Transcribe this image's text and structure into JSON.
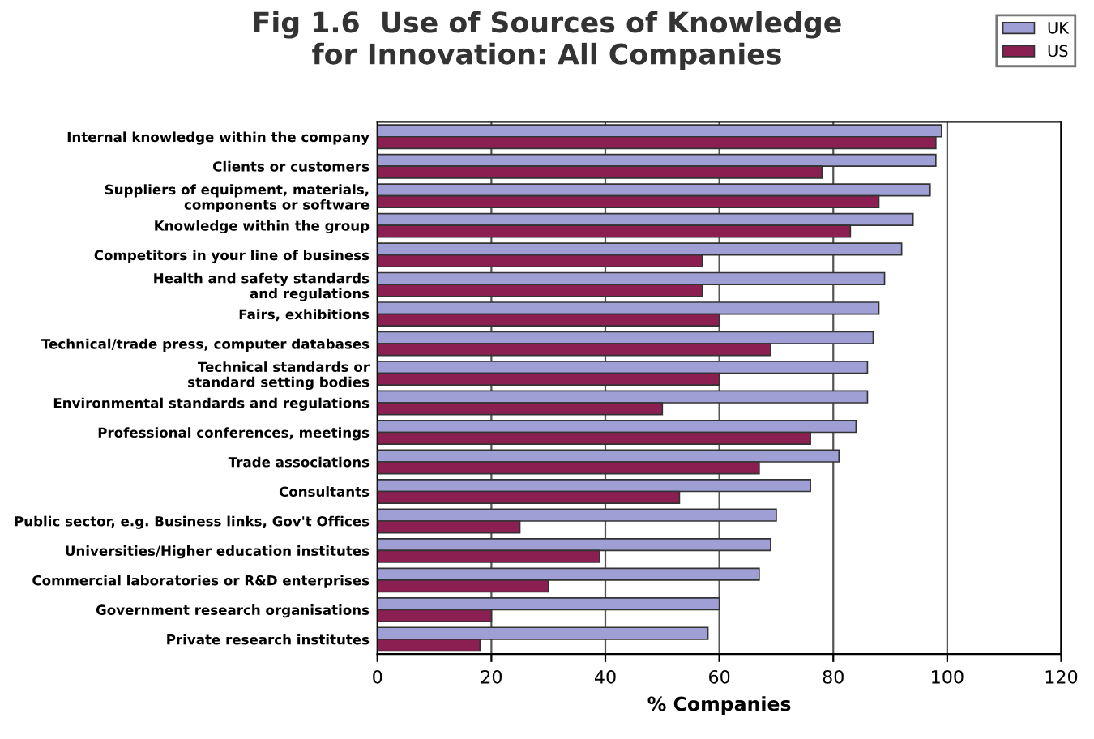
{
  "chart_data": {
    "type": "bar",
    "orientation": "horizontal",
    "title": "Fig 1.6  Use of Sources of Knowledge\nfor Innovation: All Companies",
    "xlabel": "% Companies",
    "categories": [
      "Internal knowledge within the company",
      "Clients or customers",
      "Suppliers of equipment, materials,\ncomponents or software",
      "Knowledge within the group",
      "Competitors in your line of business",
      "Health and safety standards\nand regulations",
      "Fairs, exhibitions",
      "Technical/trade press, computer databases",
      "Technical standards or\nstandard setting bodies",
      "Environmental standards and regulations",
      "Professional conferences, meetings",
      "Trade associations",
      "Consultants",
      "Public sector, e.g. Business links, Gov't Offices",
      "Universities/Higher education institutes",
      "Commercial laboratories or R&D enterprises",
      "Government research organisations",
      "Private research institutes"
    ],
    "series": [
      {
        "name": "UK",
        "color": "#9f9fd6",
        "values": [
          99,
          98,
          97,
          94,
          92,
          89,
          88,
          87,
          86,
          86,
          84,
          81,
          76,
          70,
          69,
          67,
          60,
          58
        ]
      },
      {
        "name": "US",
        "color": "#8b1f52",
        "values": [
          98,
          78,
          88,
          83,
          57,
          57,
          60,
          69,
          60,
          50,
          76,
          67,
          53,
          25,
          39,
          30,
          20,
          18
        ]
      }
    ],
    "xlim": [
      0,
      120
    ],
    "xticks": [
      0,
      20,
      40,
      60,
      80,
      100,
      120
    ],
    "grid": "x",
    "legend": "top right"
  }
}
